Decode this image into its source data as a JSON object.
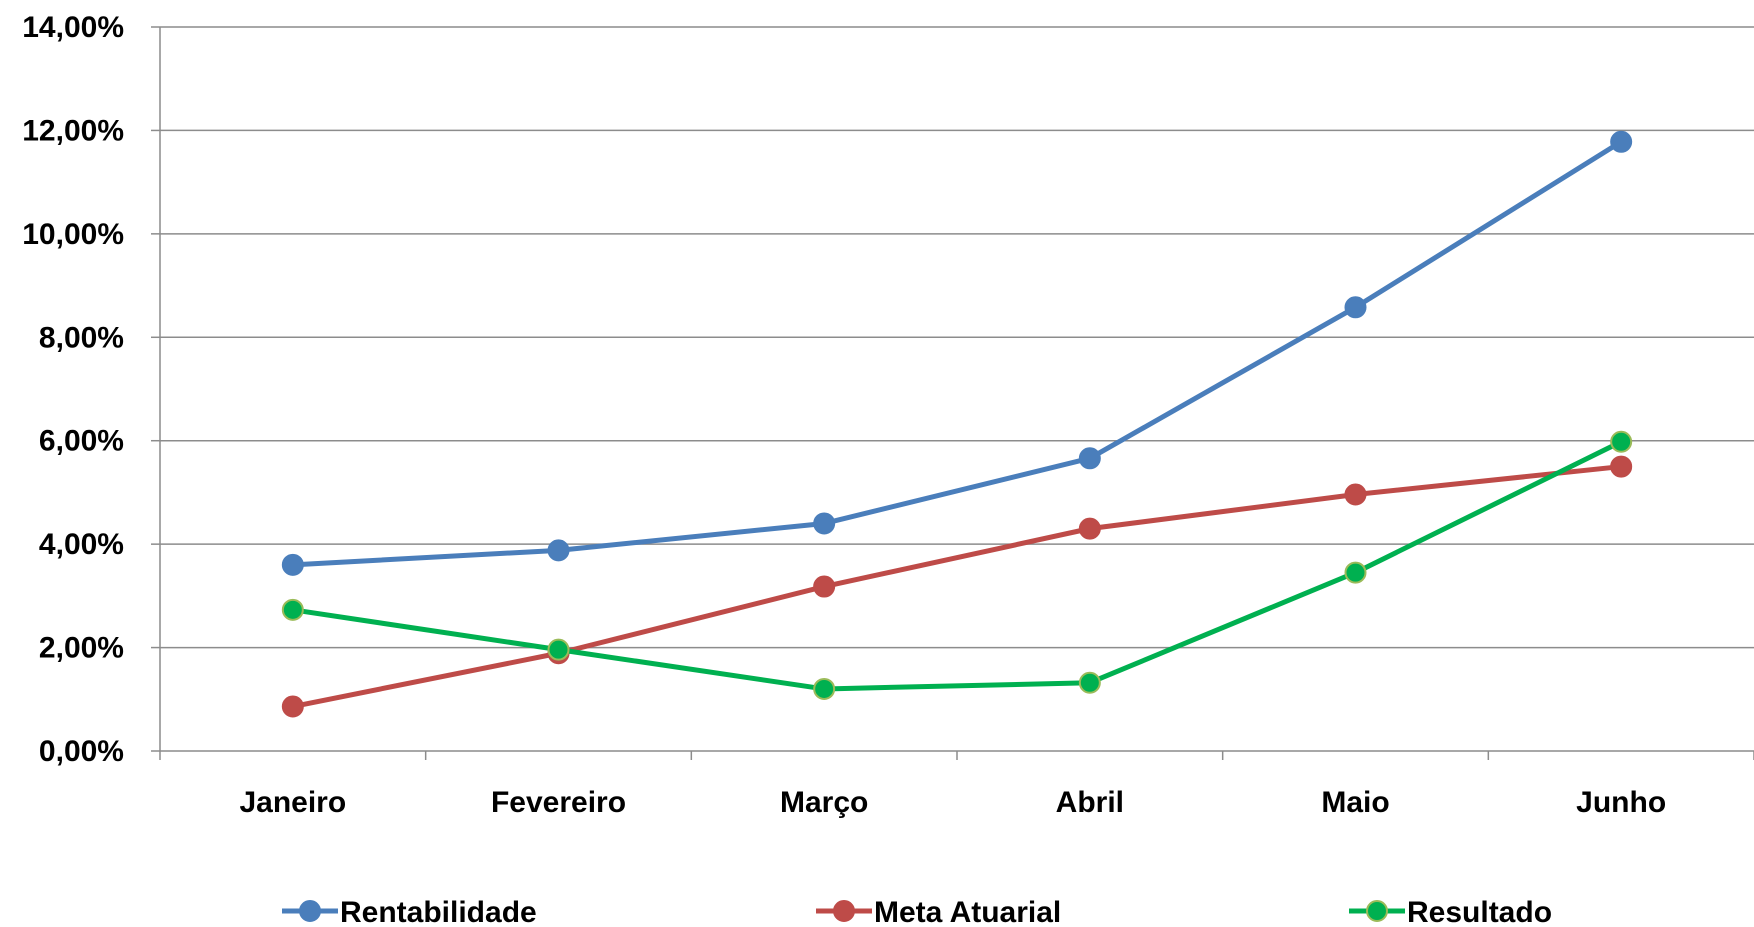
{
  "chart_data": {
    "type": "line",
    "title": "",
    "xlabel": "",
    "ylabel": "",
    "categories": [
      "Janeiro",
      "Fevereiro",
      "Março",
      "Abril",
      "Maio",
      "Junho"
    ],
    "ylim": [
      0,
      14
    ],
    "yticks": [
      0,
      2,
      4,
      6,
      8,
      10,
      12,
      14
    ],
    "ytick_labels": [
      "0,00%",
      "2,00%",
      "4,00%",
      "6,00%",
      "8,00%",
      "10,00%",
      "12,00%",
      "14,00%"
    ],
    "grid": true,
    "legend_position": "bottom",
    "series": [
      {
        "name": "Rentabilidade",
        "color": "#4a7ebb",
        "values": [
          3.6,
          3.88,
          4.4,
          5.66,
          8.58,
          11.78
        ]
      },
      {
        "name": "Meta Atuarial",
        "color": "#be4b48",
        "values": [
          0.86,
          1.89,
          3.18,
          4.3,
          4.96,
          5.5
        ]
      },
      {
        "name": "Resultado",
        "color": "#00b050",
        "values": [
          2.73,
          1.96,
          1.2,
          1.32,
          3.45,
          5.98
        ]
      }
    ]
  }
}
